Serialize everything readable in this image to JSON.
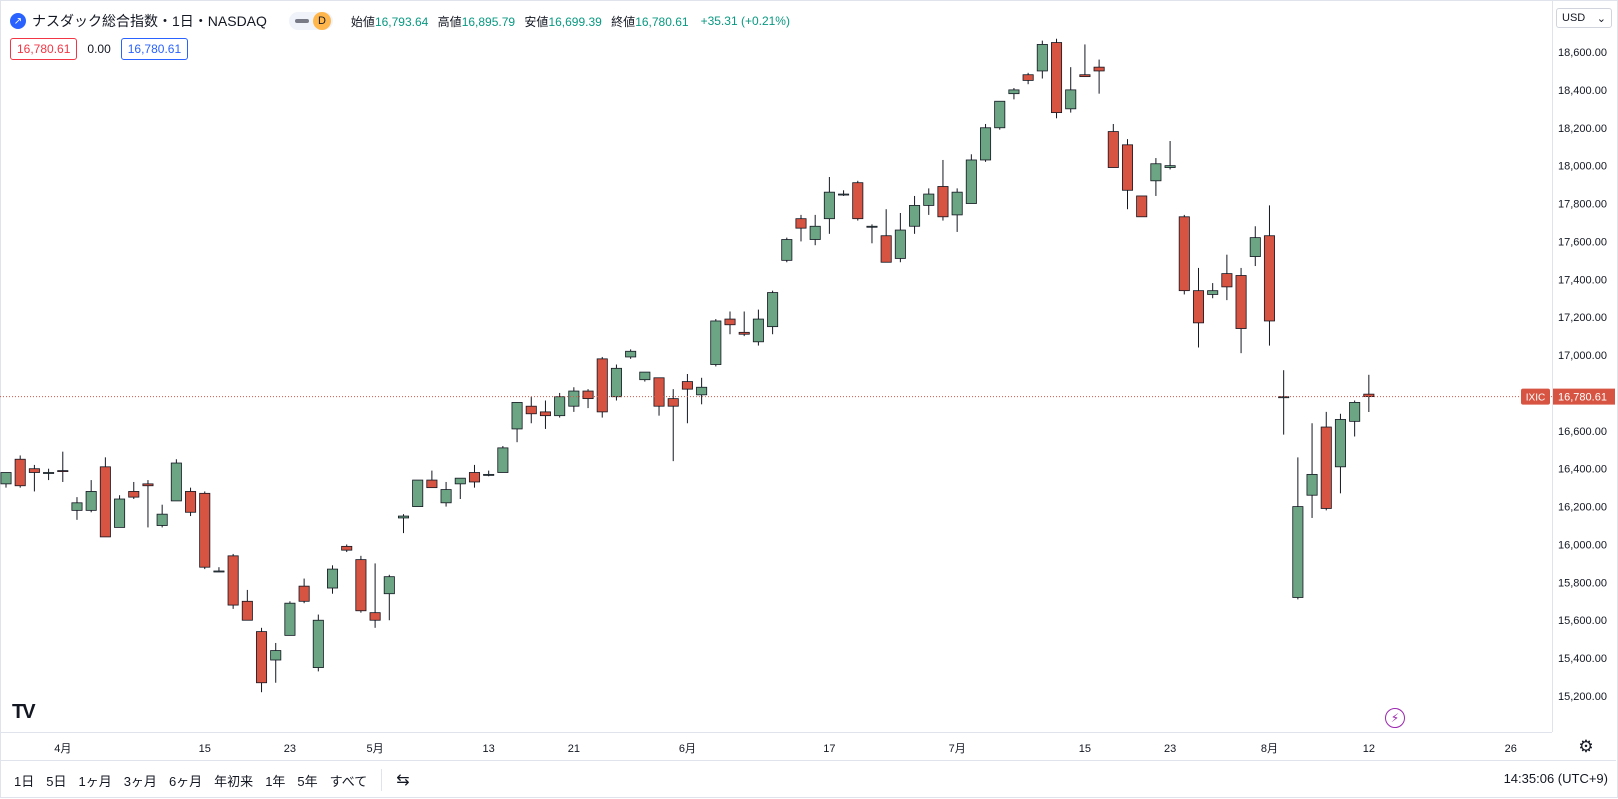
{
  "legend": {
    "title": "ナスダック総合指数・1日・NASDAQ",
    "interval_badge": "D",
    "open_label": "始値",
    "open": "16,793.64",
    "high_label": "高値",
    "high": "16,895.79",
    "low_label": "安値",
    "low": "16,699.39",
    "close_label": "終値",
    "close": "16,780.61",
    "change": "+35.31 (+0.21%)",
    "bid": "16,780.61",
    "spread": "0.00",
    "ask": "16,780.61"
  },
  "currency": "USD",
  "last_price": {
    "symbol": "IXIC",
    "value": "16,780.61",
    "numeric": 16780.61
  },
  "toolbar": {
    "ranges": [
      "1日",
      "5日",
      "1ヶ月",
      "3ヶ月",
      "6ヶ月",
      "年初来",
      "1年",
      "5年",
      "すべて"
    ],
    "clock": "14:35:06 (UTC+9)"
  },
  "icons": {
    "logo": "tradingview-logo-icon",
    "settings": "gear-icon",
    "flash": "lightning-icon",
    "compare": "calendar-range-icon"
  },
  "colors": {
    "up": "#6ba583",
    "down": "#d75442",
    "accent": "#2962ff",
    "last_line": "#d75442"
  },
  "chart_data": {
    "type": "candlestick",
    "y_ticks": [
      "15,200.00",
      "15,400.00",
      "15,600.00",
      "15,800.00",
      "16,000.00",
      "16,200.00",
      "16,400.00",
      "16,600.00",
      "16,800.00",
      "17,000.00",
      "17,200.00",
      "17,400.00",
      "17,600.00",
      "17,800.00",
      "18,000.00",
      "18,200.00",
      "18,400.00",
      "18,600.00"
    ],
    "y_tick_values": [
      15200,
      15400,
      15600,
      15800,
      16000,
      16200,
      16400,
      16600,
      16800,
      17000,
      17200,
      17400,
      17600,
      17800,
      18000,
      18200,
      18400,
      18600
    ],
    "ylim": [
      15000,
      18750
    ],
    "x_ticks": [
      {
        "label": "4月",
        "index": 4
      },
      {
        "label": "15",
        "index": 14
      },
      {
        "label": "23",
        "index": 20
      },
      {
        "label": "5月",
        "index": 26
      },
      {
        "label": "13",
        "index": 34
      },
      {
        "label": "21",
        "index": 40
      },
      {
        "label": "6月",
        "index": 48
      },
      {
        "label": "17",
        "index": 58
      },
      {
        "label": "7月",
        "index": 67
      },
      {
        "label": "15",
        "index": 76
      },
      {
        "label": "23",
        "index": 82
      },
      {
        "label": "8月",
        "index": 89
      },
      {
        "label": "12",
        "index": 96
      },
      {
        "label": "26",
        "index": 106
      }
    ],
    "x_range": [
      0,
      107
    ],
    "candles": [
      {
        "o": 16320,
        "h": 16380,
        "l": 16300,
        "c": 16380
      },
      {
        "o": 16450,
        "h": 16470,
        "l": 16300,
        "c": 16310
      },
      {
        "o": 16400,
        "h": 16420,
        "l": 16280,
        "c": 16380
      },
      {
        "o": 16380,
        "h": 16400,
        "l": 16340,
        "c": 16380
      },
      {
        "o": 16390,
        "h": 16490,
        "l": 16330,
        "c": 16385
      },
      {
        "o": 16180,
        "h": 16250,
        "l": 16130,
        "c": 16220
      },
      {
        "o": 16180,
        "h": 16340,
        "l": 16170,
        "c": 16280
      },
      {
        "o": 16410,
        "h": 16460,
        "l": 16040,
        "c": 16040
      },
      {
        "o": 16090,
        "h": 16260,
        "l": 16090,
        "c": 16240
      },
      {
        "o": 16280,
        "h": 16330,
        "l": 16240,
        "c": 16250
      },
      {
        "o": 16320,
        "h": 16340,
        "l": 16090,
        "c": 16310
      },
      {
        "o": 16100,
        "h": 16210,
        "l": 16090,
        "c": 16160
      },
      {
        "o": 16230,
        "h": 16450,
        "l": 16230,
        "c": 16430
      },
      {
        "o": 16280,
        "h": 16300,
        "l": 16150,
        "c": 16170
      },
      {
        "o": 16270,
        "h": 16280,
        "l": 15870,
        "c": 15880
      },
      {
        "o": 15860,
        "h": 15880,
        "l": 15860,
        "c": 15860
      },
      {
        "o": 15940,
        "h": 15950,
        "l": 15660,
        "c": 15680
      },
      {
        "o": 15700,
        "h": 15760,
        "l": 15600,
        "c": 15600
      },
      {
        "o": 15540,
        "h": 15560,
        "l": 15220,
        "c": 15270
      },
      {
        "o": 15390,
        "h": 15480,
        "l": 15270,
        "c": 15440
      },
      {
        "o": 15520,
        "h": 15700,
        "l": 15520,
        "c": 15690
      },
      {
        "o": 15780,
        "h": 15820,
        "l": 15690,
        "c": 15700
      },
      {
        "o": 15350,
        "h": 15630,
        "l": 15330,
        "c": 15600
      },
      {
        "o": 15770,
        "h": 15890,
        "l": 15740,
        "c": 15870
      },
      {
        "o": 15990,
        "h": 16000,
        "l": 15960,
        "c": 15970
      },
      {
        "o": 15920,
        "h": 15940,
        "l": 15640,
        "c": 15650
      },
      {
        "o": 15640,
        "h": 15900,
        "l": 15560,
        "c": 15600
      },
      {
        "o": 15740,
        "h": 15840,
        "l": 15600,
        "c": 15830
      },
      {
        "o": 16140,
        "h": 16160,
        "l": 16060,
        "c": 16150
      },
      {
        "o": 16200,
        "h": 16340,
        "l": 16200,
        "c": 16340
      },
      {
        "o": 16340,
        "h": 16390,
        "l": 16300,
        "c": 16300
      },
      {
        "o": 16220,
        "h": 16330,
        "l": 16200,
        "c": 16290
      },
      {
        "o": 16320,
        "h": 16350,
        "l": 16240,
        "c": 16350
      },
      {
        "o": 16380,
        "h": 16420,
        "l": 16300,
        "c": 16330
      },
      {
        "o": 16370,
        "h": 16390,
        "l": 16360,
        "c": 16370
      },
      {
        "o": 16380,
        "h": 16520,
        "l": 16380,
        "c": 16510
      },
      {
        "o": 16610,
        "h": 16750,
        "l": 16540,
        "c": 16750
      },
      {
        "o": 16730,
        "h": 16780,
        "l": 16640,
        "c": 16690
      },
      {
        "o": 16700,
        "h": 16760,
        "l": 16610,
        "c": 16680
      },
      {
        "o": 16680,
        "h": 16800,
        "l": 16670,
        "c": 16780
      },
      {
        "o": 16730,
        "h": 16830,
        "l": 16700,
        "c": 16810
      },
      {
        "o": 16810,
        "h": 16820,
        "l": 16720,
        "c": 16770
      },
      {
        "o": 16980,
        "h": 16990,
        "l": 16670,
        "c": 16700
      },
      {
        "o": 16780,
        "h": 16950,
        "l": 16760,
        "c": 16930
      },
      {
        "o": 16990,
        "h": 17030,
        "l": 16980,
        "c": 17020
      },
      {
        "o": 16870,
        "h": 16910,
        "l": 16860,
        "c": 16910
      },
      {
        "o": 16880,
        "h": 16880,
        "l": 16680,
        "c": 16730
      },
      {
        "o": 16770,
        "h": 16820,
        "l": 16440,
        "c": 16730
      },
      {
        "o": 16860,
        "h": 16900,
        "l": 16640,
        "c": 16820
      },
      {
        "o": 16790,
        "h": 16880,
        "l": 16740,
        "c": 16830
      },
      {
        "o": 16950,
        "h": 17190,
        "l": 16940,
        "c": 17180
      },
      {
        "o": 17190,
        "h": 17230,
        "l": 17110,
        "c": 17160
      },
      {
        "o": 17120,
        "h": 17230,
        "l": 17100,
        "c": 17110
      },
      {
        "o": 17070,
        "h": 17240,
        "l": 17050,
        "c": 17190
      },
      {
        "o": 17150,
        "h": 17340,
        "l": 17110,
        "c": 17330
      },
      {
        "o": 17500,
        "h": 17620,
        "l": 17490,
        "c": 17610
      },
      {
        "o": 17720,
        "h": 17740,
        "l": 17600,
        "c": 17670
      },
      {
        "o": 17610,
        "h": 17740,
        "l": 17580,
        "c": 17680
      },
      {
        "o": 17720,
        "h": 17940,
        "l": 17640,
        "c": 17860
      },
      {
        "o": 17850,
        "h": 17870,
        "l": 17840,
        "c": 17850
      },
      {
        "o": 17910,
        "h": 17920,
        "l": 17710,
        "c": 17720
      },
      {
        "o": 17680,
        "h": 17690,
        "l": 17590,
        "c": 17680
      },
      {
        "o": 17630,
        "h": 17770,
        "l": 17490,
        "c": 17490
      },
      {
        "o": 17510,
        "h": 17750,
        "l": 17490,
        "c": 17660
      },
      {
        "o": 17680,
        "h": 17840,
        "l": 17640,
        "c": 17790
      },
      {
        "o": 17790,
        "h": 17880,
        "l": 17740,
        "c": 17850
      },
      {
        "o": 17890,
        "h": 18030,
        "l": 17710,
        "c": 17730
      },
      {
        "o": 17740,
        "h": 17880,
        "l": 17650,
        "c": 17860
      },
      {
        "o": 17800,
        "h": 18060,
        "l": 17800,
        "c": 18030
      },
      {
        "o": 18030,
        "h": 18220,
        "l": 18020,
        "c": 18200
      },
      {
        "o": 18200,
        "h": 18340,
        "l": 18190,
        "c": 18340
      },
      {
        "o": 18380,
        "h": 18410,
        "l": 18350,
        "c": 18400
      },
      {
        "o": 18480,
        "h": 18490,
        "l": 18430,
        "c": 18450
      },
      {
        "o": 18500,
        "h": 18660,
        "l": 18460,
        "c": 18640
      },
      {
        "o": 18650,
        "h": 18670,
        "l": 18250,
        "c": 18280
      },
      {
        "o": 18300,
        "h": 18520,
        "l": 18280,
        "c": 18400
      },
      {
        "o": 18480,
        "h": 18640,
        "l": 18470,
        "c": 18470
      },
      {
        "o": 18520,
        "h": 18560,
        "l": 18380,
        "c": 18500
      },
      {
        "o": 18180,
        "h": 18220,
        "l": 17990,
        "c": 17990
      },
      {
        "o": 18110,
        "h": 18140,
        "l": 17770,
        "c": 17870
      },
      {
        "o": 17840,
        "h": 17840,
        "l": 17730,
        "c": 17730
      },
      {
        "o": 17920,
        "h": 18040,
        "l": 17840,
        "c": 18010
      },
      {
        "o": 17990,
        "h": 18130,
        "l": 17980,
        "c": 18000
      },
      {
        "o": 17730,
        "h": 17740,
        "l": 17320,
        "c": 17340
      },
      {
        "o": 17340,
        "h": 17460,
        "l": 17040,
        "c": 17170
      },
      {
        "o": 17320,
        "h": 17380,
        "l": 17300,
        "c": 17340
      },
      {
        "o": 17430,
        "h": 17530,
        "l": 17290,
        "c": 17360
      },
      {
        "o": 17420,
        "h": 17460,
        "l": 17010,
        "c": 17140
      },
      {
        "o": 17520,
        "h": 17680,
        "l": 17470,
        "c": 17620
      },
      {
        "o": 17630,
        "h": 17790,
        "l": 17050,
        "c": 17180
      },
      {
        "o": 16780,
        "h": 16920,
        "l": 16580,
        "c": 16780
      },
      {
        "o": 15720,
        "h": 16460,
        "l": 15710,
        "c": 16200
      },
      {
        "o": 16260,
        "h": 16640,
        "l": 16140,
        "c": 16370
      },
      {
        "o": 16620,
        "h": 16700,
        "l": 16180,
        "c": 16190
      },
      {
        "o": 16410,
        "h": 16690,
        "l": 16270,
        "c": 16660
      },
      {
        "o": 16650,
        "h": 16760,
        "l": 16570,
        "c": 16750
      },
      {
        "o": 16793.64,
        "h": 16895.79,
        "l": 16699.39,
        "c": 16780.61
      }
    ],
    "first_index": 0
  }
}
